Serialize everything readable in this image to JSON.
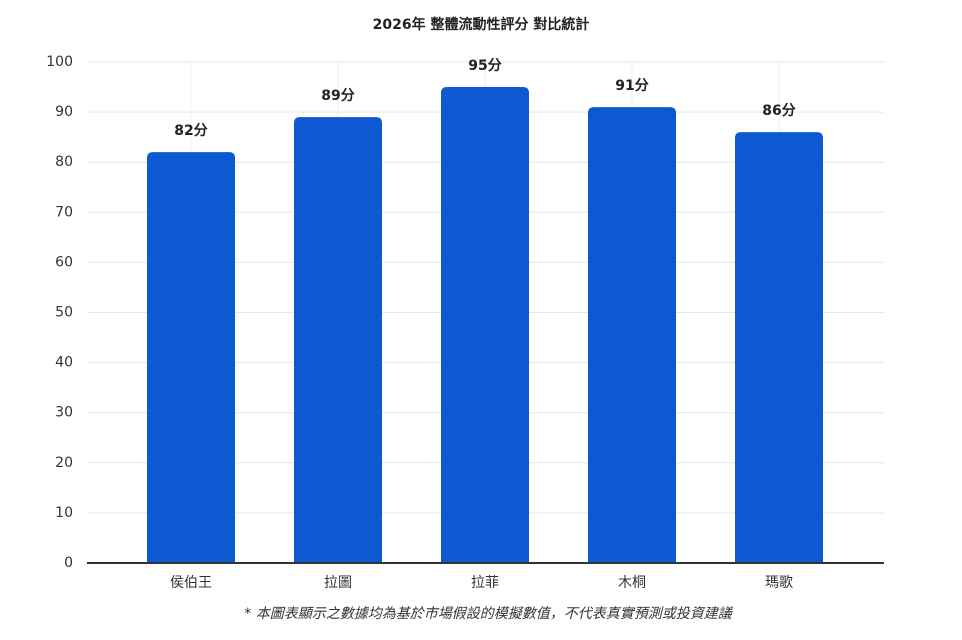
{
  "chart_data": {
    "type": "bar",
    "title": "2026年 整體流動性評分 對比統計",
    "categories": [
      "侯伯王",
      "拉圖",
      "拉菲",
      "木桐",
      "瑪歌"
    ],
    "values": [
      82,
      89,
      95,
      91,
      86
    ],
    "value_labels": [
      "82分",
      "89分",
      "95分",
      "91分",
      "86分"
    ],
    "color": "#0d59d1",
    "ylim": [
      0,
      100
    ],
    "yticks": [
      0,
      10,
      20,
      30,
      40,
      50,
      60,
      70,
      80,
      90,
      100
    ],
    "grid": true,
    "footnote": "* 本圖表顯示之數據均為基於市場假設的模擬數值，不代表真實預測或投資建議"
  }
}
